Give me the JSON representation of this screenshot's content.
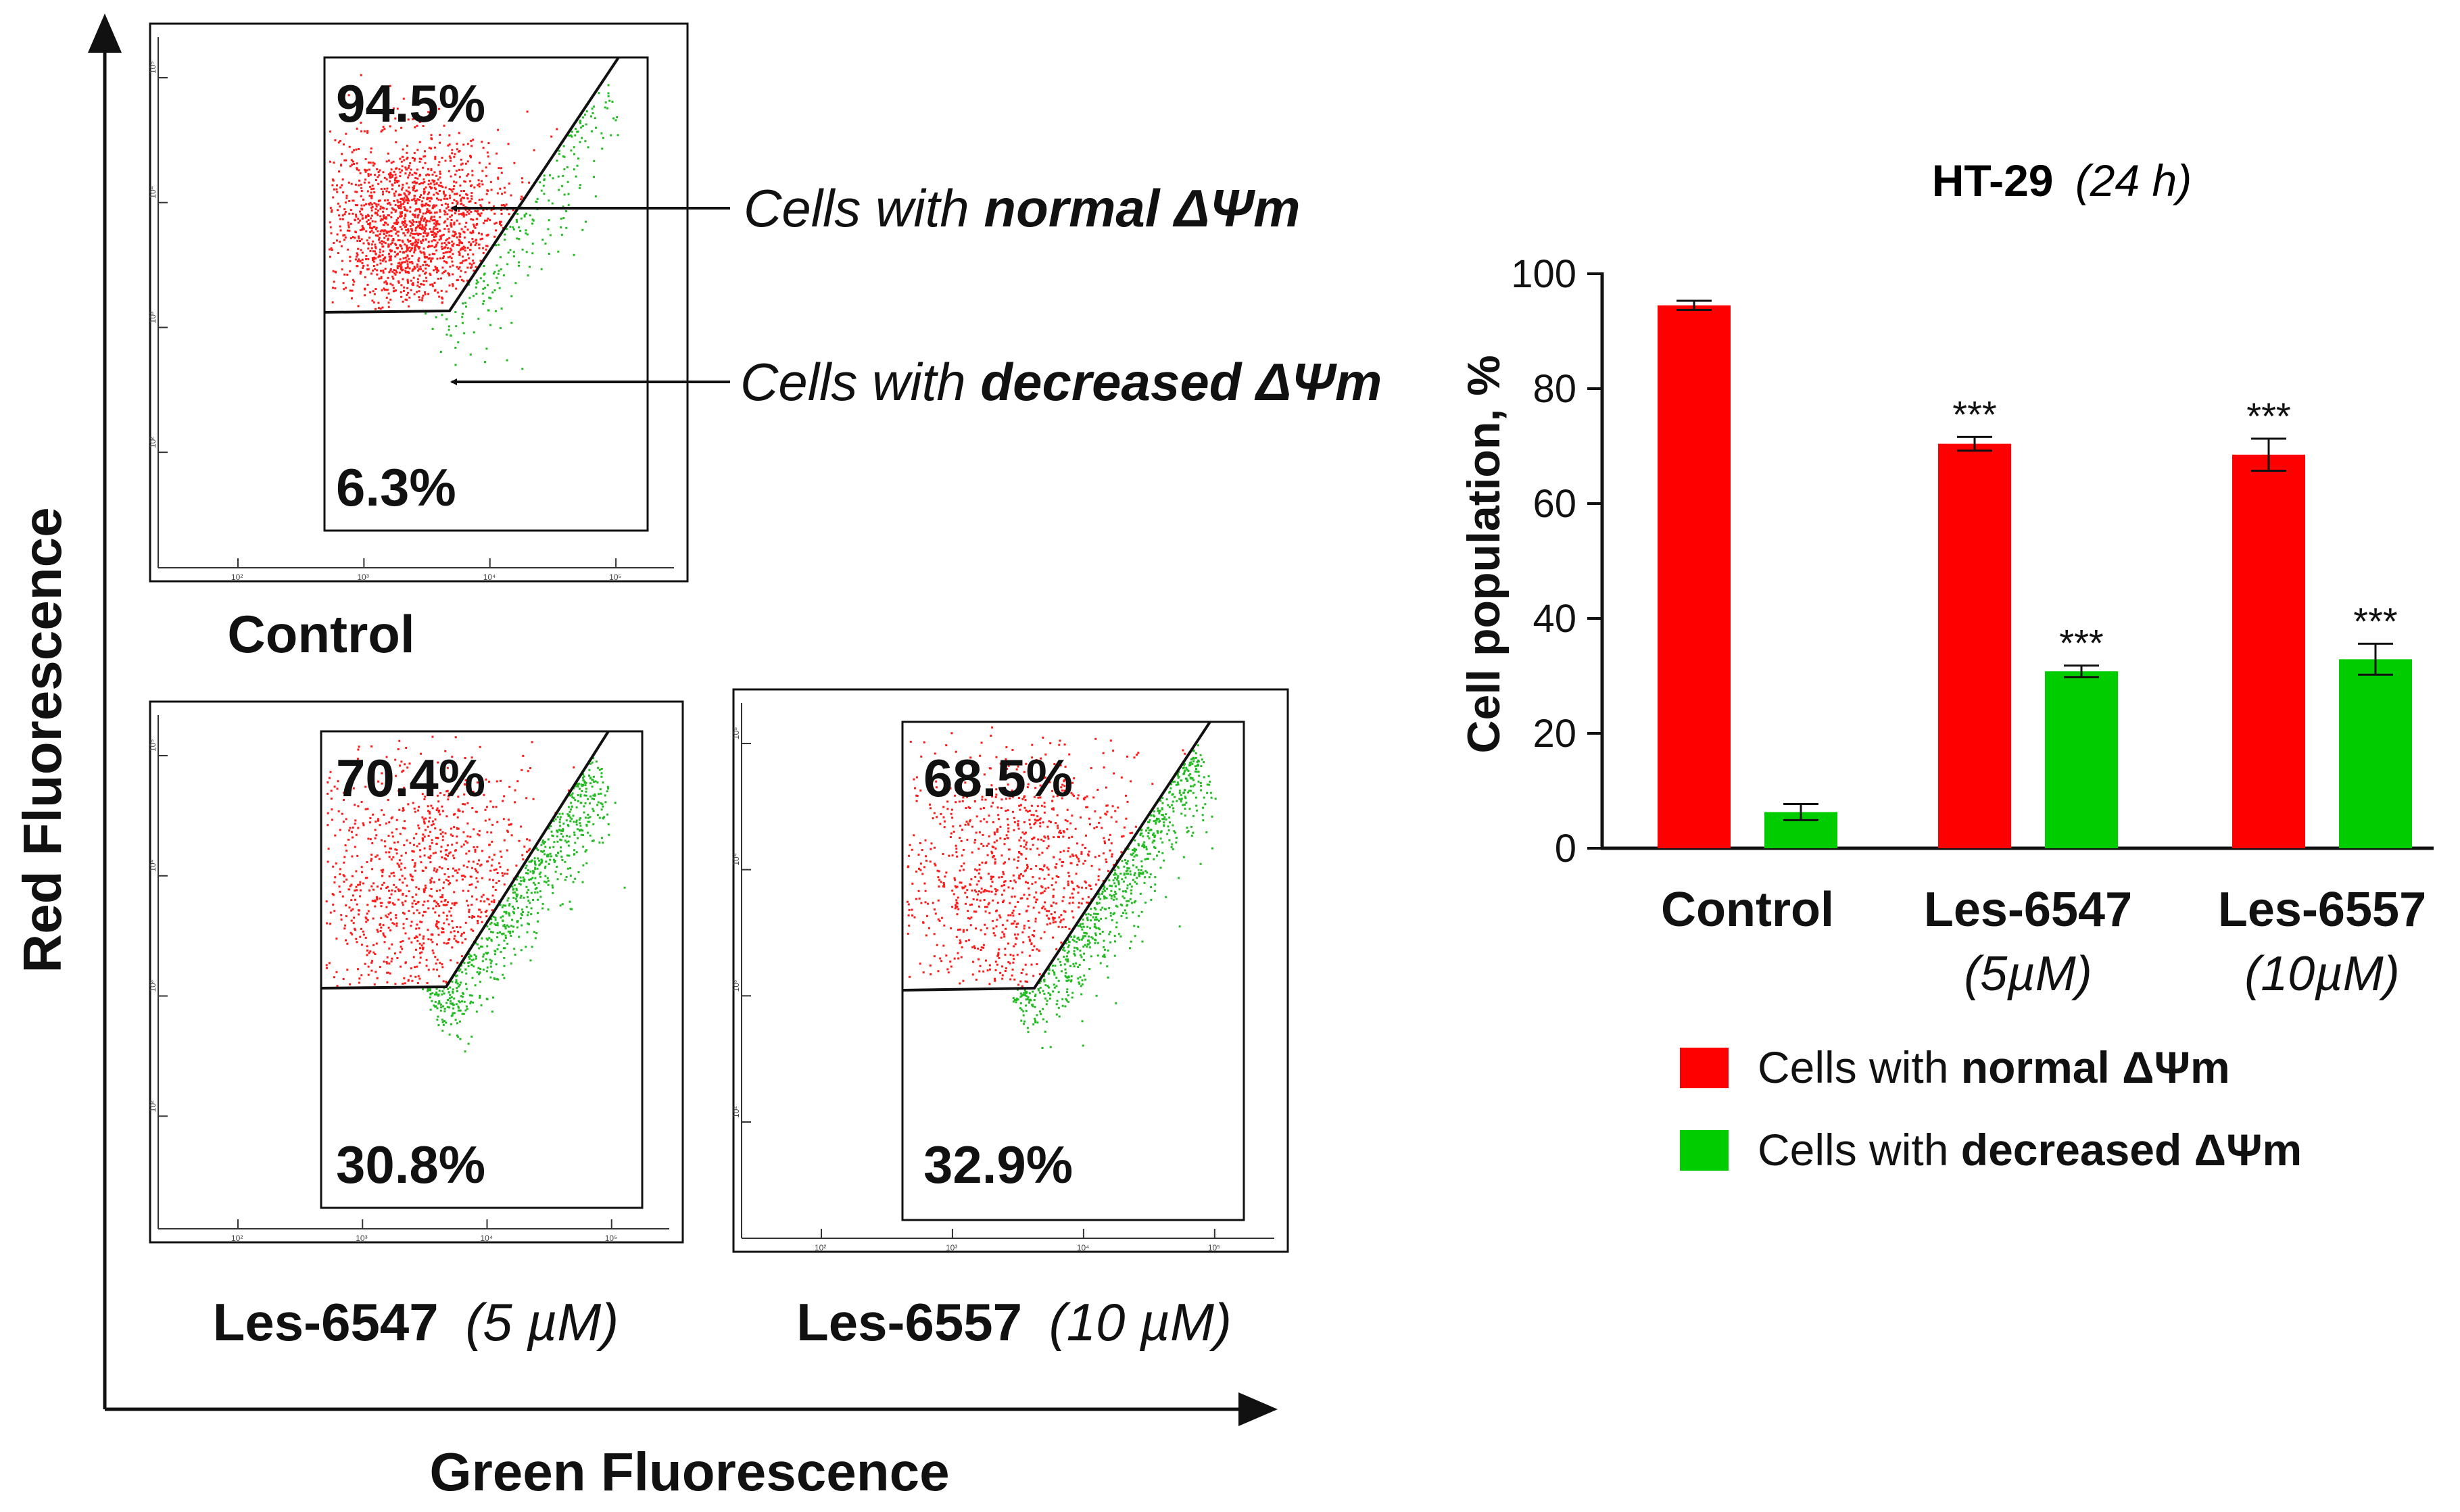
{
  "figure": {
    "y_axis_title": "Red Fluorescence",
    "x_axis_title": "Green Fluorescence",
    "annotation_normal": {
      "prefix": "Cells with ",
      "bold": "normal ΔΨm"
    },
    "annotation_decreased": {
      "prefix": "Cells with ",
      "bold": "decreased ΔΨm"
    }
  },
  "panels": [
    {
      "name": "Control",
      "label": "Control",
      "label_conc": "",
      "upper_pct": "94.5%",
      "lower_pct": "6.3%"
    },
    {
      "name": "Les-6547",
      "label": "Les-6547",
      "label_conc": "(5 µM)",
      "upper_pct": "70.4%",
      "lower_pct": "30.8%"
    },
    {
      "name": "Les-6557",
      "label": "Les-6557",
      "label_conc": "(10 µM)",
      "upper_pct": "68.5%",
      "lower_pct": "32.9%"
    }
  ],
  "panel_axis_ticks": [
    "10²",
    "10³",
    "10⁴",
    "10⁵"
  ],
  "chart_data": {
    "type": "bar",
    "title": "HT-29",
    "subtitle": "(24 h)",
    "ylabel": "Cell population, %",
    "xlabel": "",
    "ylim": [
      0,
      100
    ],
    "yticks": [
      0,
      20,
      40,
      60,
      80,
      100
    ],
    "categories": [
      {
        "name": "Control",
        "sub": ""
      },
      {
        "name": "Les-6547",
        "sub": "(5µM)"
      },
      {
        "name": "Les-6557",
        "sub": "(10µM)"
      }
    ],
    "series": [
      {
        "name": "Cells with normal ΔΨm",
        "label_prefix": "Cells with ",
        "label_bold": "normal ΔΨm",
        "color": "#ff0000",
        "values": [
          94.5,
          70.4,
          68.5
        ],
        "errors": [
          0.8,
          1.2,
          2.8
        ],
        "significance": [
          "",
          "***",
          "***"
        ]
      },
      {
        "name": "Cells with decreased ΔΨm",
        "label_prefix": "Cells with ",
        "label_bold": "decreased ΔΨm",
        "color": "#00cc00",
        "values": [
          6.3,
          30.8,
          32.9
        ],
        "errors": [
          1.4,
          1.0,
          2.7
        ],
        "significance": [
          "",
          "***",
          "***"
        ]
      }
    ],
    "grid": false,
    "legend": "bottom"
  }
}
